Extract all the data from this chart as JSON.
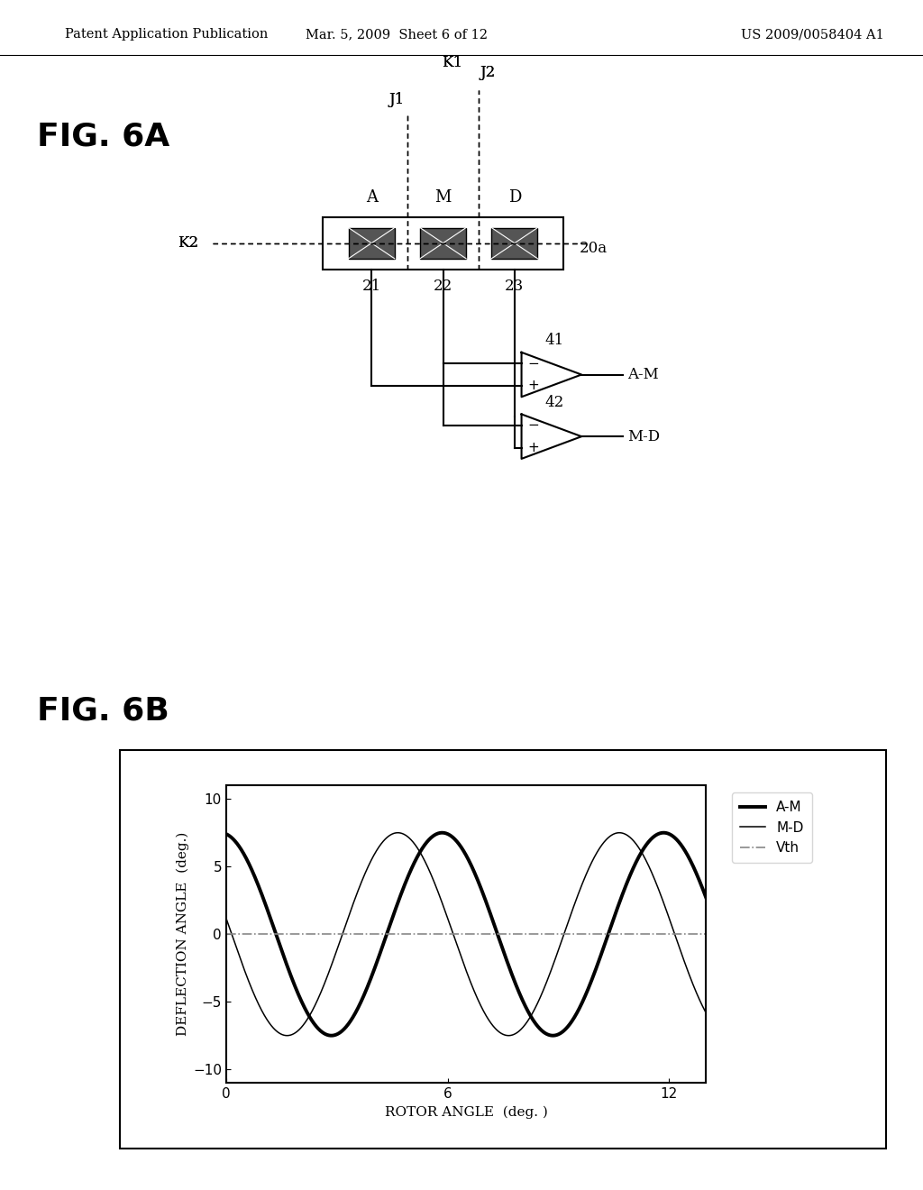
{
  "header_left": "Patent Application Publication",
  "header_mid": "Mar. 5, 2009  Sheet 6 of 12",
  "header_right": "US 2009/0058404 A1",
  "fig6a_label": "FIG. 6A",
  "fig6b_label": "FIG. 6B",
  "bg_color": "#ffffff",
  "graph_xlim": [
    0,
    13
  ],
  "graph_ylim": [
    -11,
    11
  ],
  "graph_xticks": [
    0,
    6,
    12
  ],
  "graph_yticks": [
    -10,
    -5,
    0,
    5,
    10
  ],
  "graph_xlabel": "ROTOR ANGLE  (deg. )",
  "graph_ylabel": "DEFLECTION ANGLE  (deg.)",
  "legend_labels": [
    "A-M",
    "M-D",
    "Vth"
  ],
  "am_amplitude": 7.5,
  "md_amplitude": 7.5,
  "vth_value": 0.0,
  "period": 6.0
}
